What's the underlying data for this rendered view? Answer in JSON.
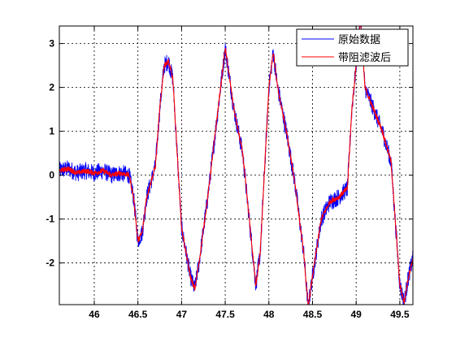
{
  "chart_data": {
    "type": "line",
    "xlim": [
      45.6,
      49.65
    ],
    "ylim": [
      -2.95,
      3.4
    ],
    "x_ticks": [
      46,
      46.5,
      47,
      47.5,
      48,
      48.5,
      49,
      49.5
    ],
    "x_tick_labels": [
      "46",
      "46.5",
      "47",
      "47.5",
      "48",
      "48.5",
      "49",
      "49.5"
    ],
    "y_ticks": [
      -2,
      -1,
      0,
      1,
      2,
      3
    ],
    "y_tick_labels": [
      "-2",
      "-1",
      "0",
      "1",
      "2",
      "3"
    ],
    "grid": true,
    "legend_position": "top-right",
    "series": [
      {
        "name": "原始数据",
        "color": "#0000ff",
        "noise_amplitude": 0.2,
        "x": [
          45.6,
          45.7,
          45.8,
          45.9,
          46.0,
          46.1,
          46.2,
          46.3,
          46.4,
          46.45,
          46.5,
          46.55,
          46.6,
          46.7,
          46.75,
          46.8,
          46.85,
          46.9,
          46.95,
          47.0,
          47.1,
          47.15,
          47.2,
          47.3,
          47.4,
          47.5,
          47.6,
          47.7,
          47.8,
          47.85,
          47.9,
          48.0,
          48.05,
          48.1,
          48.2,
          48.3,
          48.4,
          48.45,
          48.5,
          48.6,
          48.7,
          48.8,
          48.9,
          48.95,
          49.0,
          49.05,
          49.1,
          49.2,
          49.3,
          49.4,
          49.5,
          49.55,
          49.6,
          49.65
        ],
        "y": [
          0.1,
          0.15,
          0.05,
          0.1,
          0.05,
          0.1,
          0.0,
          0.05,
          0.0,
          -0.5,
          -1.5,
          -1.3,
          -0.5,
          0.2,
          1.5,
          2.5,
          2.6,
          2.2,
          0.5,
          -1.2,
          -2.3,
          -2.6,
          -2.0,
          -0.5,
          1.2,
          2.9,
          1.5,
          0.5,
          -1.5,
          -2.5,
          -1.8,
          2.0,
          2.8,
          2.0,
          1.0,
          -0.2,
          -1.8,
          -3.0,
          -2.3,
          -1.0,
          -0.6,
          -0.5,
          -0.3,
          1.5,
          2.5,
          3.6,
          2.0,
          1.5,
          1.0,
          0.3,
          -2.5,
          -2.9,
          -2.3,
          -1.9
        ]
      },
      {
        "name": "带阻滤波后",
        "color": "#ff0000",
        "noise_amplitude": 0.06,
        "x": [
          45.6,
          45.7,
          45.8,
          45.9,
          46.0,
          46.1,
          46.2,
          46.3,
          46.4,
          46.45,
          46.5,
          46.55,
          46.6,
          46.7,
          46.75,
          46.8,
          46.85,
          46.9,
          46.95,
          47.0,
          47.1,
          47.15,
          47.2,
          47.3,
          47.4,
          47.5,
          47.6,
          47.7,
          47.8,
          47.85,
          47.9,
          48.0,
          48.05,
          48.1,
          48.2,
          48.3,
          48.4,
          48.45,
          48.5,
          48.6,
          48.7,
          48.8,
          48.9,
          48.95,
          49.0,
          49.05,
          49.1,
          49.2,
          49.3,
          49.4,
          49.5,
          49.55,
          49.6,
          49.65
        ],
        "y": [
          0.1,
          0.15,
          0.05,
          0.1,
          0.05,
          0.1,
          0.0,
          0.05,
          0.0,
          -0.5,
          -1.5,
          -1.3,
          -0.5,
          0.2,
          1.5,
          2.5,
          2.6,
          2.2,
          0.5,
          -1.2,
          -2.3,
          -2.6,
          -2.0,
          -0.5,
          1.2,
          2.9,
          1.5,
          0.5,
          -1.5,
          -2.5,
          -1.8,
          2.0,
          2.8,
          2.0,
          1.0,
          -0.2,
          -1.8,
          -3.0,
          -2.3,
          -1.0,
          -0.6,
          -0.5,
          -0.3,
          1.5,
          2.5,
          3.6,
          2.0,
          1.5,
          1.0,
          0.3,
          -2.5,
          -2.9,
          -2.3,
          -1.9
        ]
      }
    ]
  }
}
